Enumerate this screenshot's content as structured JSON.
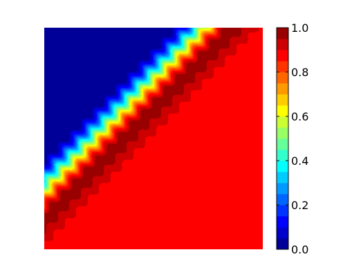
{
  "chart_data": {
    "type": "contourf",
    "title": "",
    "xlabel": "",
    "ylabel": "",
    "axes_visible": false,
    "xlim": [
      0,
      1
    ],
    "ylim": [
      0,
      1
    ],
    "zlim": [
      0.0,
      1.0
    ],
    "colormap": "jet",
    "levels": [
      0.0,
      0.05,
      0.1,
      0.15,
      0.2,
      0.25,
      0.3,
      0.35,
      0.4,
      0.45,
      0.5,
      0.55,
      0.6,
      0.65,
      0.7,
      0.75,
      0.8,
      0.85,
      0.9,
      0.95,
      1.0
    ],
    "field_description": "value is 0 above the diagonal band, rises smoothly across a wide diagonal transition to 1, then settles near 0.85 toward the lower-right",
    "transition_center_offset": 0.28,
    "transition_width": 0.16,
    "plateau_value": 0.85,
    "colorbar": {
      "ticks": [
        0.0,
        0.2,
        0.4,
        0.6,
        0.8,
        1.0
      ],
      "tick_labels": [
        "0.0",
        "0.2",
        "0.4",
        "0.6",
        "0.8",
        "1.0"
      ]
    }
  }
}
